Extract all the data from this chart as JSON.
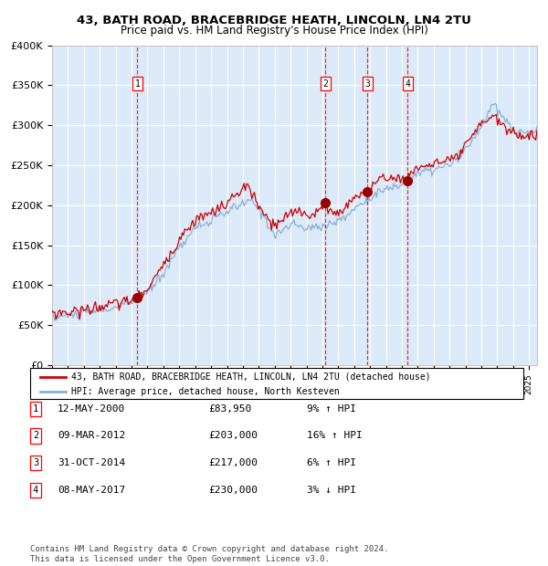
{
  "title": "43, BATH ROAD, BRACEBRIDGE HEATH, LINCOLN, LN4 2TU",
  "subtitle": "Price paid vs. HM Land Registry's House Price Index (HPI)",
  "ylim": [
    0,
    400000
  ],
  "yticks": [
    0,
    50000,
    100000,
    150000,
    200000,
    250000,
    300000,
    350000,
    400000
  ],
  "ytick_labels": [
    "£0",
    "£50K",
    "£100K",
    "£150K",
    "£200K",
    "£250K",
    "£300K",
    "£350K",
    "£400K"
  ],
  "plot_bg_color": "#dce9f8",
  "hpi_line_color": "#8ab0d8",
  "price_line_color": "#cc0000",
  "marker_color": "#990000",
  "sale_points": [
    {
      "date_num": 2000.36,
      "price": 83950,
      "label": "1"
    },
    {
      "date_num": 2012.19,
      "price": 203000,
      "label": "2"
    },
    {
      "date_num": 2014.83,
      "price": 217000,
      "label": "3"
    },
    {
      "date_num": 2017.36,
      "price": 230000,
      "label": "4"
    }
  ],
  "sale_labels_info": [
    {
      "label": "1",
      "date": "12-MAY-2000",
      "price": "£83,950",
      "pct": "9%",
      "dir": "↑",
      "vs": "HPI"
    },
    {
      "label": "2",
      "date": "09-MAR-2012",
      "price": "£203,000",
      "pct": "16%",
      "dir": "↑",
      "vs": "HPI"
    },
    {
      "label": "3",
      "date": "31-OCT-2014",
      "price": "£217,000",
      "pct": "6%",
      "dir": "↑",
      "vs": "HPI"
    },
    {
      "label": "4",
      "date": "08-MAY-2017",
      "price": "£230,000",
      "pct": "3%",
      "dir": "↓",
      "vs": "HPI"
    }
  ],
  "legend_line1": "43, BATH ROAD, BRACEBRIDGE HEATH, LINCOLN, LN4 2TU (detached house)",
  "legend_line2": "HPI: Average price, detached house, North Kesteven",
  "footer": "Contains HM Land Registry data © Crown copyright and database right 2024.\nThis data is licensed under the Open Government Licence v3.0.",
  "xmin": 1995.0,
  "xmax": 2025.5
}
